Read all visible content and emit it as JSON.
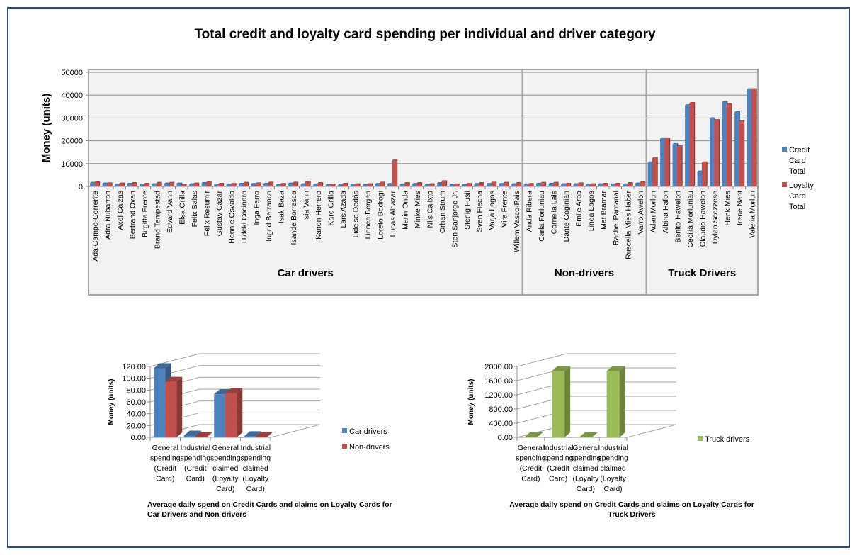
{
  "chart_data": [
    {
      "type": "bar",
      "title": "Total credit and loyalty card spending per individual and driver category",
      "xlabel": "",
      "ylabel": "Money (units)",
      "ylim": [
        0,
        50000
      ],
      "yticks": [
        "0",
        "10000",
        "20000",
        "30000",
        "40000",
        "50000"
      ],
      "grid": true,
      "legend_position": "right",
      "groups": [
        {
          "name": "Car drivers",
          "categories": [
            "Ada Campo-Corrente",
            "Adra Nubarron",
            "Axel Calzas",
            "Bertrand Ovan",
            "Birgitta Frente",
            "Brand Tempestad",
            "Edvard Vann",
            "Elsa Orilla",
            "Felix Balas",
            "Felix Resumir",
            "Gustav Cazar",
            "Hennie Osvaldo",
            "Hideki Cocinaro",
            "Inga Ferro",
            "Ingrid Barranco",
            "Isak Baza",
            "Isande Borrasca",
            "Isia Vann",
            "Kanon Herrero",
            "Kare Orilla",
            "Lars Azada",
            "Lidelse Dedos",
            "Linnea Bergen",
            "Loreto Bodrogi",
            "Lucas Alcazar",
            "Marin Onda",
            "Minke Mies",
            "Nils Calixto",
            "Orhan Strum",
            "Sten Sanjorge Jr.",
            "Stenig Fusil",
            "Sven Flecha",
            "Varja Lagos",
            "Vira Frente",
            "Willem Vasco-Pais"
          ]
        },
        {
          "name": "Non-drivers",
          "categories": [
            "Anda Ribera",
            "Carla Forluniau",
            "Cornelia Lais",
            "Dante Coginian",
            "Emile Arpa",
            "Linda Lagos",
            "Mat Bramar",
            "Rachel Pantanal",
            "Ruscella Mies Haber",
            "Varro Awelon"
          ]
        },
        {
          "name": "Truck Drivers",
          "categories": [
            "Adan Morlun",
            "Albina Hafon",
            "Benito Hawelon",
            "Cecilia Morluniau",
            "Claudio Hawelon",
            "Dylan Scozzese",
            "Henk Mies",
            "Irene Nant",
            "Valeria Morlun"
          ]
        }
      ],
      "series": [
        {
          "name": "Credit Card Total",
          "color": "#4f81bd",
          "values": [
            1500,
            1200,
            700,
            1100,
            700,
            900,
            1200,
            1200,
            900,
            1400,
            700,
            700,
            1100,
            1000,
            1100,
            600,
            1200,
            900,
            700,
            500,
            700,
            700,
            600,
            1000,
            1000,
            800,
            1000,
            600,
            1400,
            600,
            600,
            1000,
            1000,
            1000,
            900,
            800,
            1100,
            1100,
            900,
            900,
            700,
            900,
            800,
            800,
            1200,
            10500,
            21000,
            18500,
            35500,
            6500,
            29800,
            37000,
            32500,
            42500
          ]
        },
        {
          "name": "Loyalty Card Total",
          "color": "#c0504d",
          "values": [
            1700,
            1300,
            1200,
            1400,
            1100,
            1500,
            1500,
            500,
            1200,
            1700,
            1100,
            1000,
            1500,
            1300,
            1600,
            1000,
            1600,
            2000,
            1400,
            700,
            1100,
            900,
            900,
            1600,
            11300,
            1400,
            1400,
            900,
            2200,
            800,
            1000,
            1400,
            1600,
            1500,
            1400,
            1000,
            1500,
            1500,
            1100,
            1300,
            900,
            1100,
            1100,
            1400,
            1700,
            12500,
            21000,
            17500,
            36500,
            10500,
            29000,
            36000,
            28500,
            42500
          ]
        }
      ]
    },
    {
      "type": "bar",
      "title": "Average daily spend on Credit Cards and claims on Loyalty Cards for Car Drivers and  Non-drivers",
      "ylabel": "Money (units)",
      "ylim": [
        0,
        120
      ],
      "yticks": [
        "0.00",
        "20.00",
        "40.00",
        "60.00",
        "80.00",
        "100.00",
        "120.00"
      ],
      "grid": true,
      "legend_position": "right",
      "categories": [
        [
          "General",
          "spending",
          "(Credit",
          "Card)"
        ],
        [
          "Industrial",
          "spending",
          "(Credit",
          "Card)"
        ],
        [
          "General",
          "spending",
          "claimed",
          "(Loyalty",
          "Card)"
        ],
        [
          "Industrial",
          "spending",
          "claimed",
          "(Loyalty",
          "Card)"
        ]
      ],
      "series": [
        {
          "name": "Car drivers",
          "color": "#4f81bd",
          "values": [
            117,
            3,
            73,
            2
          ]
        },
        {
          "name": "Non-drivers",
          "color": "#c0504d",
          "values": [
            94,
            1,
            75,
            1
          ]
        }
      ]
    },
    {
      "type": "bar",
      "title": "Average daily spend on Credit Cards and claims on Loyalty Cards for Truck Drivers",
      "ylabel": "Money (units)",
      "ylim": [
        0,
        2000
      ],
      "yticks": [
        "0.00",
        "400.00",
        "800.00",
        "1200.00",
        "1600.00",
        "2000.00"
      ],
      "grid": true,
      "legend_position": "right",
      "categories": [
        [
          "General",
          "spending",
          "(Credit",
          "Card)"
        ],
        [
          "Industrial",
          "spending",
          "(Credit",
          "Card)"
        ],
        [
          "General",
          "spending",
          "claimed",
          "(Loyalty",
          "Card)"
        ],
        [
          "Industrial",
          "spending",
          "claimed",
          "(Loyalty",
          "Card)"
        ]
      ],
      "series": [
        {
          "name": "Truck drivers",
          "color": "#9bbb59",
          "values": [
            5,
            1870,
            5,
            1870
          ]
        }
      ]
    }
  ]
}
